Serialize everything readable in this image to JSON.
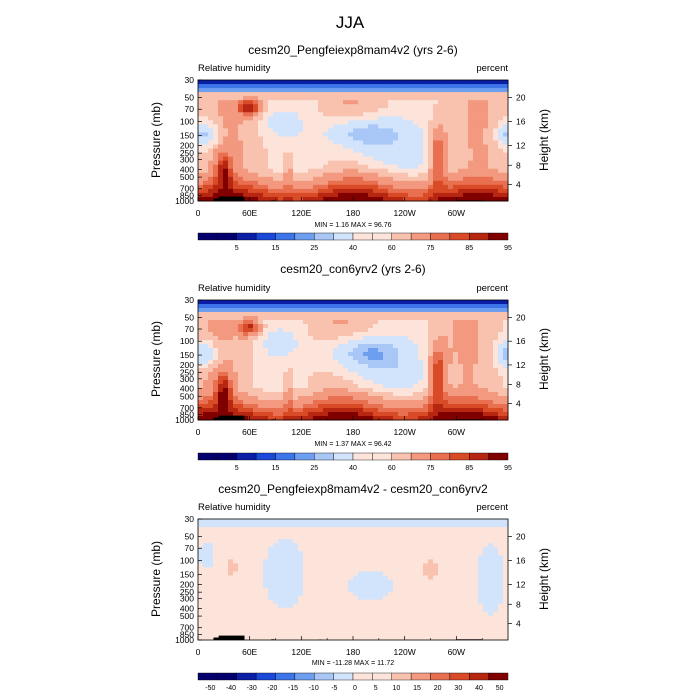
{
  "figure": {
    "title": "JJA"
  },
  "colors": {
    "rh": [
      "#03006e",
      "#0a1ea6",
      "#1a49d9",
      "#3d74e8",
      "#6d9ef0",
      "#a8c7f7",
      "#d2e4fb",
      "#fde4da",
      "#f9c2ae",
      "#f29980",
      "#e86f50",
      "#d94a27",
      "#b72611",
      "#800000"
    ],
    "diff": [
      "#03006e",
      "#0a1ea6",
      "#1a49d9",
      "#3d74e8",
      "#6d9ef0",
      "#a8c7f7",
      "#d2e4fb",
      "#fde4da",
      "#f9c2ae",
      "#f29980",
      "#e86f50",
      "#d94a27",
      "#b72611",
      "#800000"
    ],
    "land": "#000000"
  },
  "chart_data": [
    {
      "type": "heatmap",
      "title": "cesm20_Pengfeiexp8mam4v2 (yrs 2-6)",
      "left_label": "Relative humidity",
      "right_label": "percent",
      "ylabel": "Pressure (mb)",
      "y2label": "Height (km)",
      "x_ticks": [
        "0",
        "60E",
        "120E",
        "180",
        "120W",
        "60W"
      ],
      "y_ticks": [
        "30",
        "50",
        "70",
        "100",
        "150",
        "200",
        "250",
        "300",
        "400",
        "500",
        "700",
        "850",
        "1000"
      ],
      "y2_ticks": [
        "20",
        "16",
        "12",
        "8",
        "4"
      ],
      "minmax": "MIN =    1.16  MAX =  96.76",
      "colorbar_labels": [
        "5",
        "15",
        "25",
        "40",
        "60",
        "75",
        "85",
        "95"
      ],
      "ylim": [
        1000,
        30
      ],
      "xlim": [
        0,
        360
      ]
    },
    {
      "type": "heatmap",
      "title": "cesm20_con6yrv2 (yrs 2-6)",
      "left_label": "Relative humidity",
      "right_label": "percent",
      "ylabel": "Pressure (mb)",
      "y2label": "Height (km)",
      "x_ticks": [
        "0",
        "60E",
        "120E",
        "180",
        "120W",
        "60W"
      ],
      "y_ticks": [
        "30",
        "50",
        "70",
        "100",
        "150",
        "200",
        "250",
        "300",
        "400",
        "500",
        "700",
        "850",
        "1000"
      ],
      "y2_ticks": [
        "20",
        "16",
        "12",
        "8",
        "4"
      ],
      "minmax": "MIN =    1.37  MAX =  96.42",
      "colorbar_labels": [
        "5",
        "15",
        "25",
        "40",
        "60",
        "75",
        "85",
        "95"
      ],
      "ylim": [
        1000,
        30
      ],
      "xlim": [
        0,
        360
      ]
    },
    {
      "type": "heatmap",
      "title": "cesm20_Pengfeiexp8mam4v2 - cesm20_con6yrv2",
      "left_label": "Relative humidity",
      "right_label": "percent",
      "ylabel": "Pressure (mb)",
      "y2label": "Height (km)",
      "x_ticks": [
        "0",
        "60E",
        "120E",
        "180",
        "120W",
        "60W"
      ],
      "y_ticks": [
        "30",
        "50",
        "70",
        "100",
        "150",
        "200",
        "250",
        "300",
        "400",
        "500",
        "700",
        "850",
        "1000"
      ],
      "y2_ticks": [
        "20",
        "16",
        "12",
        "8",
        "4"
      ],
      "minmax": "MIN = -11.28  MAX =  11.72",
      "colorbar_labels": [
        "-50",
        "-40",
        "-30",
        "-20",
        "-15",
        "-10",
        "-5",
        "0",
        "5",
        "10",
        "15",
        "20",
        "30",
        "40",
        "50"
      ],
      "ylim": [
        1000,
        30
      ],
      "xlim": [
        0,
        360
      ]
    }
  ]
}
